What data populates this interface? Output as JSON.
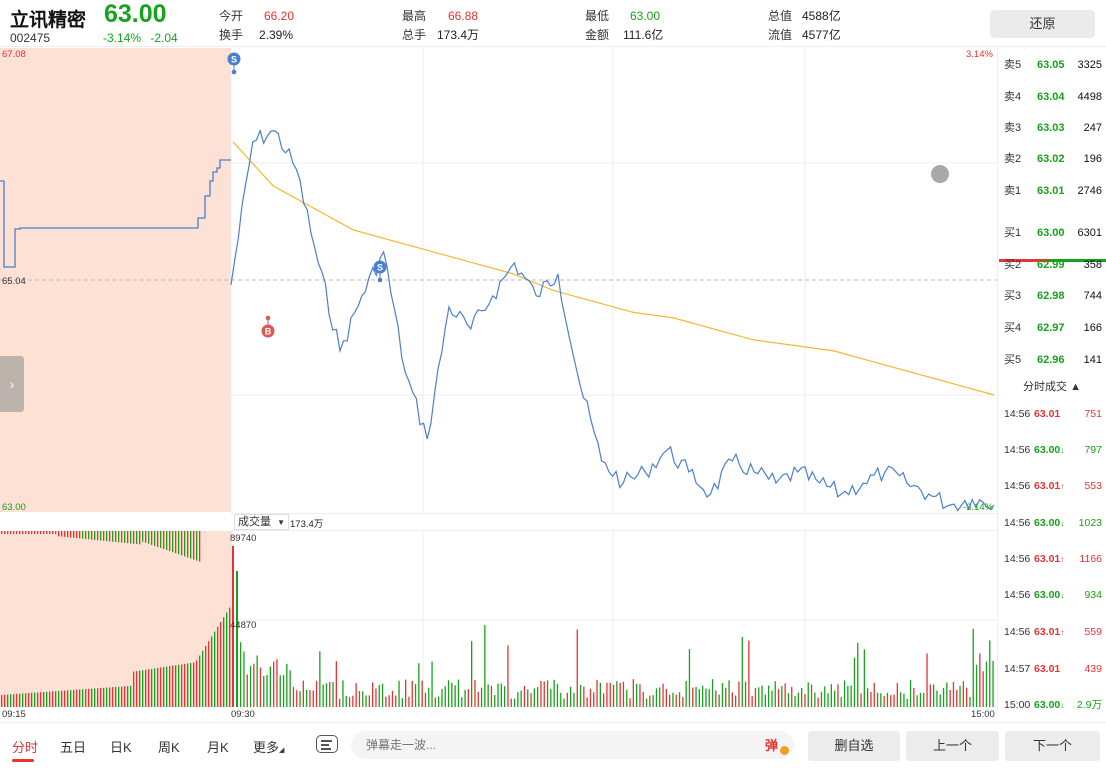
{
  "header": {
    "name": "立讯精密",
    "code": "002475",
    "price": "63.00",
    "change_pct": "-3.14%",
    "change_amt": "-2.04",
    "stats": [
      {
        "label": "今开",
        "value": "66.20",
        "color": "red"
      },
      {
        "label": "换手",
        "value": "2.39%",
        "color": "plain"
      },
      {
        "label": "最高",
        "value": "66.88",
        "color": "red"
      },
      {
        "label": "总手",
        "value": "173.4万",
        "color": "plain"
      },
      {
        "label": "最低",
        "value": "63.00",
        "color": "green"
      },
      {
        "label": "金额",
        "value": "111.6亿",
        "color": "plain"
      },
      {
        "label": "总值",
        "value": "4588亿",
        "color": "plain"
      },
      {
        "label": "流值",
        "value": "4577亿",
        "color": "plain"
      }
    ],
    "restore_label": "还原"
  },
  "chart": {
    "price_top": "67.08",
    "pct_top": "3.14%",
    "price_mid": "65.04",
    "price_bottom": "63.00",
    "pct_bottom": "-3.14%",
    "marker_s1": "S",
    "marker_s2": "S",
    "marker_b": "B",
    "volume_label": "成交量",
    "volume_total": "173.4万",
    "vol_max": "89740",
    "vol_mid": "44870",
    "time_labels": [
      "09:15",
      "09:30",
      "15:00"
    ],
    "side_toggle_glyph": "›"
  },
  "chart_data": {
    "type": "line",
    "title": "",
    "series": [
      {
        "values": [
          65.0,
          66.3,
          66.4,
          66.05,
          65.2,
          64.4,
          64.9,
          65.3,
          64.2,
          63.6,
          64.8,
          64.6,
          64.9,
          65.2,
          64.9,
          65.1,
          64.1,
          63.4,
          63.2,
          63.3,
          63.5,
          63.3,
          63.1,
          63.4,
          63.3,
          63.2,
          63.3,
          63.2,
          63.1,
          63.2,
          63.3,
          63.2,
          63.1,
          63.0,
          63.05,
          63.0
        ]
      },
      {
        "values": [
          66.3,
          65.9,
          65.7,
          65.5,
          65.4,
          65.3,
          65.2,
          65.1,
          64.95,
          64.85,
          64.75,
          64.7,
          64.6,
          64.5,
          64.45,
          64.4,
          64.3,
          64.2,
          64.1,
          64.0
        ]
      }
    ],
    "ylim": [
      63.0,
      67.08
    ],
    "yticks": [
      "67.08",
      "65.04",
      "63.00"
    ],
    "xticks": [
      "09:15",
      "09:30",
      "15:00"
    ],
    "volume": {
      "max": 89740,
      "mid": 44870,
      "total": "173.4万"
    }
  },
  "orderbook": {
    "asks": [
      {
        "label": "卖5",
        "price": "63.05",
        "qty": "3325"
      },
      {
        "label": "卖4",
        "price": "63.04",
        "qty": "4498"
      },
      {
        "label": "卖3",
        "price": "63.03",
        "qty": "247"
      },
      {
        "label": "卖2",
        "price": "63.02",
        "qty": "196"
      },
      {
        "label": "卖1",
        "price": "63.01",
        "qty": "2746"
      }
    ],
    "bids": [
      {
        "label": "买1",
        "price": "63.00",
        "qty": "6301"
      },
      {
        "label": "买2",
        "price": "62.99",
        "qty": "358"
      },
      {
        "label": "买3",
        "price": "62.98",
        "qty": "744"
      },
      {
        "label": "买4",
        "price": "62.97",
        "qty": "166"
      },
      {
        "label": "买5",
        "price": "62.96",
        "qty": "141"
      }
    ]
  },
  "trades": {
    "header": "分时成交 ▲",
    "rows": [
      {
        "time": "14:56",
        "price": "63.01",
        "arrow": "",
        "qty": "751",
        "color": "red"
      },
      {
        "time": "14:56",
        "price": "63.00",
        "arrow": "↓",
        "qty": "797",
        "color": "green"
      },
      {
        "time": "14:56",
        "price": "63.01",
        "arrow": "↑",
        "qty": "553",
        "color": "red"
      },
      {
        "time": "14:56",
        "price": "63.00",
        "arrow": "↓",
        "qty": "1023",
        "color": "green"
      },
      {
        "time": "14:56",
        "price": "63.01",
        "arrow": "↑",
        "qty": "1166",
        "color": "red"
      },
      {
        "time": "14:56",
        "price": "63.00",
        "arrow": "↓",
        "qty": "934",
        "color": "green"
      },
      {
        "time": "14:56",
        "price": "63.01",
        "arrow": "↑",
        "qty": "559",
        "color": "red"
      },
      {
        "time": "14:57",
        "price": "63.01",
        "arrow": "",
        "qty": "439",
        "color": "red"
      },
      {
        "time": "15:00",
        "price": "63.00",
        "arrow": "↓",
        "qty": "2.9万",
        "color": "green"
      }
    ]
  },
  "bottom": {
    "tabs": [
      "分时",
      "五日",
      "日K",
      "周K",
      "月K",
      "更多"
    ],
    "danmu_placeholder": "弹幕走一波...",
    "danmu_toggle": "弹",
    "remove_watch": "删自选",
    "prev": "上一个",
    "next": "下一个"
  },
  "colors": {
    "up": "#e63333",
    "down": "#17a21b",
    "price_line": "#4a7fd0",
    "avg_line": "#f5b731",
    "auction_shade": "#fde1d4"
  }
}
